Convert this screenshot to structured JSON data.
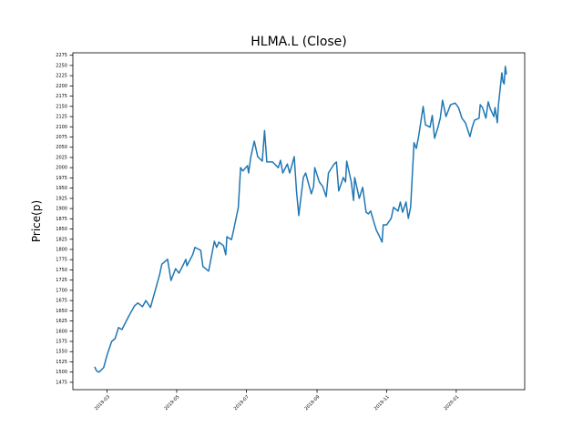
{
  "chart_data": {
    "type": "line",
    "title": "HLMA.L (Close)",
    "y_label": "Price(p)",
    "x": [
      "2019-02-18",
      "2019-02-20",
      "2019-02-22",
      "2019-02-26",
      "2019-03-01",
      "2019-03-05",
      "2019-03-08",
      "2019-03-11",
      "2019-03-14",
      "2019-03-18",
      "2019-03-21",
      "2019-03-25",
      "2019-03-28",
      "2019-04-01",
      "2019-04-04",
      "2019-04-08",
      "2019-04-12",
      "2019-04-16",
      "2019-04-18",
      "2019-04-23",
      "2019-04-26",
      "2019-04-30",
      "2019-05-03",
      "2019-05-07",
      "2019-05-09",
      "2019-05-10",
      "2019-05-15",
      "2019-05-17",
      "2019-05-22",
      "2019-05-24",
      "2019-05-29",
      "2019-06-03",
      "2019-06-05",
      "2019-06-07",
      "2019-06-11",
      "2019-06-13",
      "2019-06-14",
      "2019-06-18",
      "2019-06-20",
      "2019-06-24",
      "2019-06-26",
      "2019-06-28",
      "2019-07-02",
      "2019-07-03",
      "2019-07-05",
      "2019-07-08",
      "2019-07-11",
      "2019-07-15",
      "2019-07-17",
      "2019-07-19",
      "2019-07-24",
      "2019-07-29",
      "2019-07-31",
      "2019-08-02",
      "2019-08-06",
      "2019-08-08",
      "2019-08-09",
      "2019-08-12",
      "2019-08-14",
      "2019-08-16",
      "2019-08-20",
      "2019-08-22",
      "2019-08-27",
      "2019-08-29",
      "2019-08-30",
      "2019-09-03",
      "2019-09-06",
      "2019-09-09",
      "2019-09-11",
      "2019-09-16",
      "2019-09-18",
      "2019-09-20",
      "2019-09-24",
      "2019-09-26",
      "2019-09-27",
      "2019-10-01",
      "2019-10-03",
      "2019-10-04",
      "2019-10-08",
      "2019-10-10",
      "2019-10-11",
      "2019-10-14",
      "2019-10-16",
      "2019-10-18",
      "2019-10-21",
      "2019-10-23",
      "2019-10-25",
      "2019-10-28",
      "2019-10-29",
      "2019-11-01",
      "2019-11-05",
      "2019-11-07",
      "2019-11-11",
      "2019-11-13",
      "2019-11-15",
      "2019-11-18",
      "2019-11-20",
      "2019-11-22",
      "2019-11-25",
      "2019-11-27",
      "2019-11-29",
      "2019-12-03",
      "2019-12-05",
      "2019-12-09",
      "2019-12-11",
      "2019-12-13",
      "2019-12-16",
      "2019-12-18",
      "2019-12-20",
      "2019-12-23",
      "2019-12-27",
      "2019-12-31",
      "2020-01-03",
      "2020-01-06",
      "2020-01-09",
      "2020-01-13",
      "2020-01-15",
      "2020-01-17",
      "2020-01-21",
      "2020-01-22",
      "2020-01-24",
      "2020-01-27",
      "2020-01-29",
      "2020-01-31",
      "2020-02-03",
      "2020-02-04",
      "2020-02-06",
      "2020-02-07",
      "2020-02-10",
      "2020-02-11",
      "2020-02-12",
      "2020-02-13",
      "2020-02-14"
    ],
    "series": [
      {
        "color": "#1f77b4",
        "values": [
          1513,
          1502,
          1500,
          1511,
          1542,
          1575,
          1582,
          1609,
          1604,
          1626,
          1642,
          1662,
          1669,
          1660,
          1675,
          1658,
          1698,
          1738,
          1764,
          1776,
          1724,
          1753,
          1742,
          1764,
          1776,
          1760,
          1787,
          1805,
          1798,
          1758,
          1747,
          1820,
          1805,
          1818,
          1809,
          1787,
          1831,
          1824,
          1849,
          1903,
          2000,
          1992,
          2005,
          1987,
          2027,
          2065,
          2027,
          2016,
          2091,
          2014,
          2014,
          2000,
          2018,
          1987,
          2009,
          1987,
          1996,
          2027,
          1943,
          1883,
          1976,
          1987,
          1936,
          1954,
          2000,
          1965,
          1954,
          1929,
          1987,
          2009,
          2014,
          1943,
          1976,
          1965,
          2016,
          1965,
          1920,
          1976,
          1925,
          1943,
          1952,
          1891,
          1887,
          1894,
          1865,
          1847,
          1836,
          1818,
          1860,
          1860,
          1876,
          1903,
          1894,
          1916,
          1891,
          1916,
          1876,
          1903,
          2061,
          2047,
          2076,
          2150,
          2105,
          2099,
          2128,
          2072,
          2099,
          2121,
          2165,
          2125,
          2154,
          2158,
          2147,
          2121,
          2110,
          2076,
          2099,
          2116,
          2121,
          2154,
          2147,
          2121,
          2161,
          2143,
          2125,
          2147,
          2110,
          2154,
          2232,
          2210,
          2205,
          2248,
          2228
        ]
      }
    ],
    "xlim": [
      "2019-01-30",
      "2020-03-01"
    ],
    "xticks": [
      "2019-03",
      "2019-05",
      "2019-07",
      "2019-09",
      "2019-11",
      "2020-01"
    ],
    "ylim": [
      1457,
      2281
    ],
    "yticks": [
      1475,
      1500,
      1525,
      1550,
      1575,
      1600,
      1625,
      1650,
      1675,
      1700,
      1725,
      1750,
      1775,
      1800,
      1825,
      1850,
      1875,
      1900,
      1925,
      1950,
      1975,
      2000,
      2025,
      2050,
      2075,
      2100,
      2125,
      2150,
      2175,
      2200,
      2225,
      2250,
      2275
    ]
  }
}
